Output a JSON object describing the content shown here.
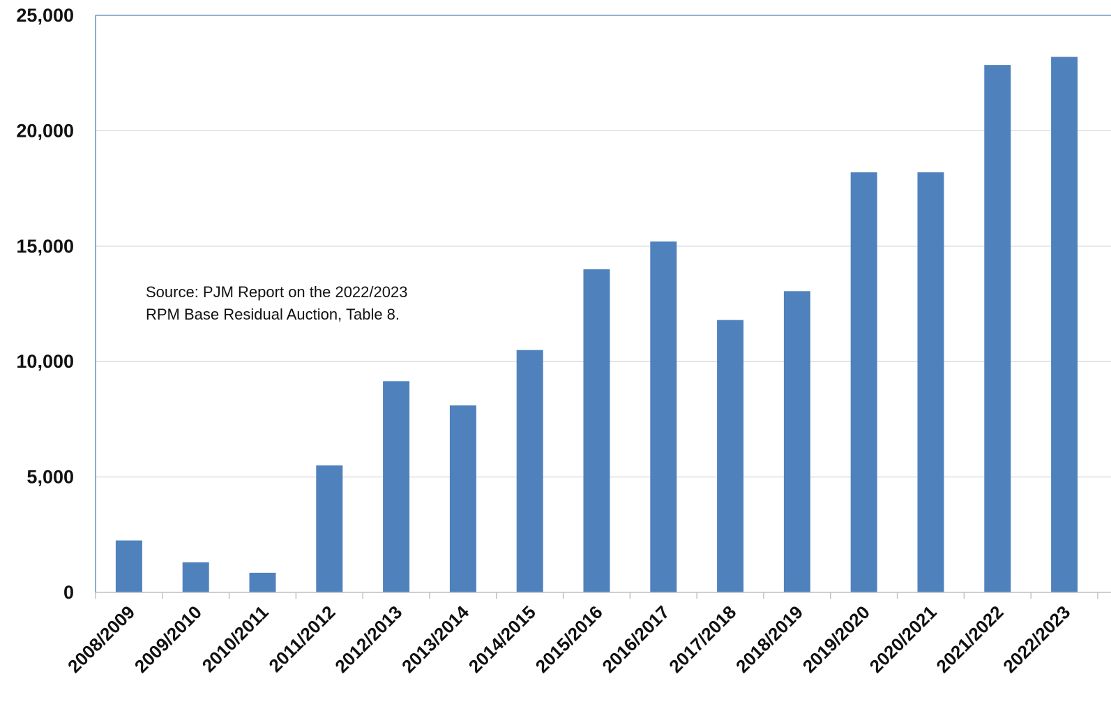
{
  "chart_data": {
    "type": "bar",
    "title": "",
    "xlabel": "",
    "ylabel": "",
    "categories": [
      "2008/2009",
      "2009/2010",
      "2010/2011",
      "2011/2012",
      "2012/2013",
      "2013/2014",
      "2014/2015",
      "2015/2016",
      "2016/2017",
      "2017/2018",
      "2018/2019",
      "2019/2020",
      "2020/2021",
      "2021/2022",
      "2022/2023"
    ],
    "values": [
      2250,
      1300,
      850,
      5500,
      9150,
      8100,
      10500,
      14000,
      15200,
      11800,
      13050,
      18200,
      18200,
      22850,
      23200
    ],
    "ylim": [
      0,
      25000
    ],
    "yticks": [
      0,
      5000,
      10000,
      15000,
      20000,
      25000
    ],
    "ytick_labels": [
      "0",
      "5,000",
      "10,000",
      "15,000",
      "20,000",
      "25,000"
    ],
    "grid": true,
    "bar_color": "#4F81BD",
    "annotation": {
      "lines": [
        "Source:  PJM Report on the 2022/2023",
        "RPM Base Residual Auction, Table 8."
      ]
    }
  }
}
